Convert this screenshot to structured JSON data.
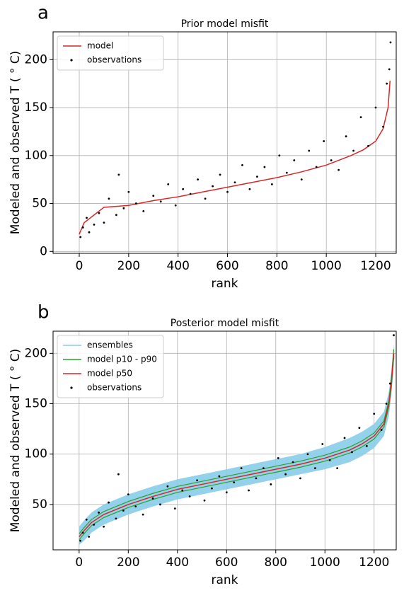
{
  "chart_data": [
    {
      "type": "line",
      "panel": "a",
      "title": "Prior model misfit",
      "x_label": "rank",
      "y_label": "Modeled and observed T ( ° C)",
      "xlim": [
        -106,
        1283
      ],
      "ylim": [
        -2,
        229
      ],
      "xticks": [
        0,
        200,
        400,
        600,
        800,
        1000,
        1200
      ],
      "yticks": [
        0,
        50,
        100,
        150,
        200
      ],
      "grid": true,
      "legend": "upper-left",
      "series": [
        {
          "name": "model",
          "color": "#d62728",
          "kind": "line",
          "x": [
            0,
            20,
            50,
            100,
            150,
            200,
            300,
            400,
            500,
            600,
            700,
            800,
            900,
            1000,
            1100,
            1150,
            1200,
            1230,
            1250,
            1258
          ],
          "values": [
            18,
            30,
            36,
            46,
            47,
            48,
            53,
            57,
            62,
            67,
            72,
            77,
            83,
            90,
            100,
            106,
            115,
            128,
            150,
            178
          ]
        },
        {
          "name": "observations",
          "color": "#000000",
          "kind": "scatter",
          "x": [
            5,
            15,
            30,
            40,
            60,
            80,
            100,
            120,
            150,
            160,
            180,
            200,
            230,
            260,
            300,
            330,
            360,
            390,
            420,
            450,
            480,
            510,
            540,
            570,
            600,
            630,
            660,
            690,
            720,
            750,
            780,
            810,
            840,
            870,
            900,
            930,
            960,
            990,
            1020,
            1050,
            1080,
            1110,
            1140,
            1170,
            1200,
            1230,
            1245,
            1255,
            1260
          ],
          "values": [
            15,
            25,
            35,
            20,
            28,
            40,
            30,
            55,
            38,
            80,
            45,
            62,
            50,
            42,
            58,
            52,
            70,
            48,
            65,
            60,
            75,
            55,
            68,
            80,
            62,
            72,
            90,
            65,
            78,
            88,
            70,
            100,
            82,
            95,
            75,
            105,
            88,
            115,
            95,
            85,
            120,
            105,
            140,
            110,
            150,
            130,
            175,
            190,
            218
          ]
        }
      ]
    },
    {
      "type": "line",
      "panel": "b",
      "title": "Posterior model misfit",
      "x_label": "rank",
      "y_label": "Modeled and observed T ( ° C)",
      "xlim": [
        -106,
        1290
      ],
      "ylim": [
        5,
        222
      ],
      "xticks": [
        0,
        200,
        400,
        600,
        800,
        1000,
        1200
      ],
      "yticks": [
        50,
        100,
        150,
        200
      ],
      "grid": true,
      "legend": "upper-left",
      "series": [
        {
          "name": "ensembles",
          "color": "#87cde8",
          "kind": "band",
          "x": [
            0,
            20,
            50,
            100,
            200,
            300,
            400,
            500,
            600,
            700,
            800,
            900,
            1000,
            1100,
            1150,
            1200,
            1240,
            1260,
            1270,
            1280
          ],
          "values_low": [
            10,
            14,
            22,
            30,
            40,
            48,
            55,
            60,
            65,
            70,
            75,
            80,
            85,
            92,
            98,
            106,
            118,
            138,
            158,
            188
          ],
          "values_high": [
            28,
            34,
            42,
            50,
            60,
            68,
            75,
            80,
            85,
            90,
            95,
            100,
            107,
            116,
            122,
            130,
            142,
            162,
            182,
            210
          ]
        },
        {
          "name": "model p10 - p90",
          "color": "#2ca02c",
          "kind": "lines",
          "x": [
            0,
            20,
            50,
            100,
            200,
            300,
            400,
            500,
            600,
            700,
            800,
            900,
            1000,
            1100,
            1150,
            1200,
            1240,
            1260,
            1270,
            1280
          ],
          "values_low": [
            15,
            21,
            29,
            37,
            47,
            55,
            62,
            67,
            72,
            77,
            82,
            87,
            93,
            101,
            107,
            115,
            127,
            147,
            166,
            196
          ],
          "values_high": [
            21,
            27,
            35,
            43,
            53,
            61,
            68,
            73,
            78,
            83,
            88,
            93,
            99,
            107,
            113,
            121,
            133,
            153,
            174,
            204
          ]
        },
        {
          "name": "model p50",
          "color": "#d62728",
          "kind": "line",
          "x": [
            0,
            20,
            50,
            100,
            200,
            300,
            400,
            500,
            600,
            700,
            800,
            900,
            1000,
            1100,
            1150,
            1200,
            1240,
            1260,
            1270,
            1280
          ],
          "values": [
            18,
            24,
            32,
            40,
            50,
            58,
            65,
            70,
            75,
            80,
            85,
            90,
            96,
            104,
            110,
            118,
            130,
            150,
            170,
            200
          ]
        },
        {
          "name": "observations",
          "color": "#000000",
          "kind": "scatter",
          "x": [
            5,
            15,
            30,
            40,
            60,
            80,
            100,
            120,
            150,
            160,
            180,
            200,
            230,
            260,
            300,
            330,
            360,
            390,
            420,
            450,
            480,
            510,
            540,
            570,
            600,
            630,
            660,
            690,
            720,
            750,
            780,
            810,
            840,
            870,
            900,
            930,
            960,
            990,
            1020,
            1050,
            1080,
            1110,
            1140,
            1170,
            1200,
            1230,
            1250,
            1265,
            1280
          ],
          "values": [
            14,
            22,
            35,
            18,
            30,
            42,
            28,
            52,
            36,
            80,
            44,
            60,
            48,
            40,
            56,
            50,
            68,
            46,
            64,
            58,
            74,
            54,
            66,
            78,
            62,
            72,
            86,
            64,
            76,
            86,
            70,
            96,
            80,
            92,
            76,
            100,
            86,
            110,
            94,
            86,
            116,
            102,
            126,
            108,
            140,
            124,
            150,
            170,
            218
          ]
        }
      ]
    }
  ]
}
